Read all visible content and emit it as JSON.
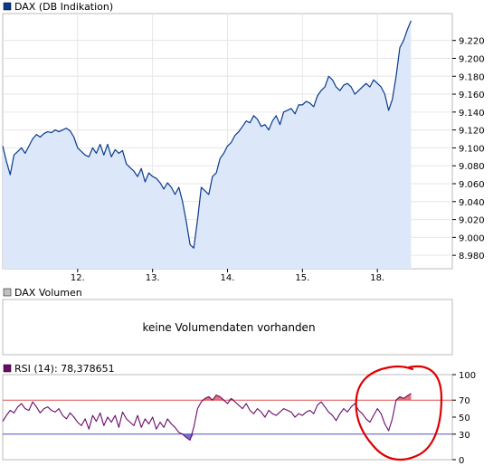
{
  "chart_data": [
    {
      "type": "area",
      "title": "DAX (DB Indikation)",
      "legend_color": "#0a3a8c",
      "series_color": "#0a3a8c",
      "fill_color": "#dce8fa",
      "grid": true,
      "ylim": [
        8965,
        9250
      ],
      "y_ticks": [
        8980,
        9000,
        9020,
        9040,
        9060,
        9080,
        9100,
        9120,
        9140,
        9160,
        9180,
        9200,
        9220
      ],
      "y_tick_labels": [
        "8.980",
        "9.000",
        "9.020",
        "9.040",
        "9.060",
        "9.080",
        "9.100",
        "9.120",
        "9.140",
        "9.160",
        "9.180",
        "9.200",
        "9.220"
      ],
      "x_tick_labels": [
        "12.",
        "13.",
        "14.",
        "15.",
        "18."
      ],
      "x_tick_positions": [
        1.0,
        2.0,
        3.0,
        4.0,
        5.0
      ],
      "xlim": [
        0,
        6.0
      ],
      "x": [
        0.0,
        0.05,
        0.1,
        0.15,
        0.2,
        0.25,
        0.3,
        0.35,
        0.4,
        0.45,
        0.5,
        0.55,
        0.6,
        0.65,
        0.7,
        0.75,
        0.8,
        0.85,
        0.9,
        0.95,
        1.0,
        1.05,
        1.1,
        1.15,
        1.2,
        1.25,
        1.3,
        1.35,
        1.4,
        1.45,
        1.5,
        1.55,
        1.6,
        1.65,
        1.7,
        1.75,
        1.8,
        1.85,
        1.9,
        1.95,
        2.0,
        2.05,
        2.1,
        2.15,
        2.2,
        2.25,
        2.3,
        2.35,
        2.4,
        2.45,
        2.5,
        2.55,
        2.6,
        2.65,
        2.7,
        2.75,
        2.8,
        2.85,
        2.9,
        2.95,
        3.0,
        3.05,
        3.1,
        3.15,
        3.2,
        3.25,
        3.3,
        3.35,
        3.4,
        3.45,
        3.5,
        3.55,
        3.6,
        3.65,
        3.7,
        3.75,
        3.8,
        3.85,
        3.9,
        3.95,
        4.0,
        4.05,
        4.1,
        4.15,
        4.2,
        4.25,
        4.3,
        4.35,
        4.4,
        4.45,
        4.5,
        4.55,
        4.6,
        4.65,
        4.7,
        4.75,
        4.8,
        4.85,
        4.9,
        4.95,
        5.0,
        5.05,
        5.1,
        5.15,
        5.2,
        5.25,
        5.3,
        5.35,
        5.4,
        5.45
      ],
      "values": [
        9102,
        9085,
        9070,
        9092,
        9096,
        9100,
        9094,
        9102,
        9110,
        9115,
        9112,
        9116,
        9118,
        9117,
        9120,
        9118,
        9120,
        9122,
        9119,
        9112,
        9100,
        9096,
        9092,
        9090,
        9100,
        9094,
        9104,
        9092,
        9104,
        9090,
        9098,
        9094,
        9097,
        9082,
        9078,
        9074,
        9068,
        9077,
        9062,
        9072,
        9068,
        9066,
        9061,
        9054,
        9061,
        9056,
        9048,
        9056,
        9040,
        9018,
        8992,
        8988,
        9020,
        9056,
        9052,
        9048,
        9068,
        9072,
        9088,
        9094,
        9102,
        9106,
        9114,
        9118,
        9124,
        9130,
        9128,
        9136,
        9132,
        9124,
        9126,
        9120,
        9130,
        9136,
        9126,
        9140,
        9142,
        9144,
        9138,
        9148,
        9148,
        9152,
        9150,
        9146,
        9158,
        9164,
        9168,
        9180,
        9176,
        9168,
        9164,
        9170,
        9172,
        9168,
        9160,
        9164,
        9168,
        9172,
        9168,
        9176,
        9172,
        9168,
        9160,
        9142,
        9154,
        9180,
        9212,
        9220,
        9232,
        9242
      ]
    },
    {
      "type": "bar",
      "title": "DAX Volumen",
      "legend_color": "#c0c0c0",
      "message": "keine Volumendaten vorhanden"
    },
    {
      "type": "line",
      "title": "RSI (14): 78,378651",
      "legend_color": "#6a0a6a",
      "series_color": "#6a0a6a",
      "ylim": [
        0,
        100
      ],
      "y_ticks": [
        100,
        70,
        50,
        30,
        0
      ],
      "y_tick_labels": [
        "100",
        "70",
        "50",
        "30",
        "0"
      ],
      "y_tick_colors": [
        "#000000",
        "#cc0000",
        "#000000",
        "#3333cc",
        "#000000"
      ],
      "upper_band": 70,
      "lower_band": 30,
      "upper_color": "#e05050",
      "lower_color": "#5050c0",
      "xlim": [
        0,
        6.0
      ],
      "x": [
        0.0,
        0.05,
        0.1,
        0.15,
        0.2,
        0.25,
        0.3,
        0.35,
        0.4,
        0.45,
        0.5,
        0.55,
        0.6,
        0.65,
        0.7,
        0.75,
        0.8,
        0.85,
        0.9,
        0.95,
        1.0,
        1.05,
        1.1,
        1.15,
        1.2,
        1.25,
        1.3,
        1.35,
        1.4,
        1.45,
        1.5,
        1.55,
        1.6,
        1.65,
        1.7,
        1.75,
        1.8,
        1.85,
        1.9,
        1.95,
        2.0,
        2.05,
        2.1,
        2.15,
        2.2,
        2.25,
        2.3,
        2.35,
        2.4,
        2.45,
        2.5,
        2.55,
        2.6,
        2.65,
        2.7,
        2.75,
        2.8,
        2.85,
        2.9,
        2.95,
        3.0,
        3.05,
        3.1,
        3.15,
        3.2,
        3.25,
        3.3,
        3.35,
        3.4,
        3.45,
        3.5,
        3.55,
        3.6,
        3.65,
        3.7,
        3.75,
        3.8,
        3.85,
        3.9,
        3.95,
        4.0,
        4.05,
        4.1,
        4.15,
        4.2,
        4.25,
        4.3,
        4.35,
        4.4,
        4.45,
        4.5,
        4.55,
        4.6,
        4.65,
        4.7,
        4.75,
        4.8,
        4.85,
        4.9,
        4.95,
        5.0,
        5.05,
        5.1,
        5.15,
        5.2,
        5.25,
        5.3,
        5.35,
        5.4,
        5.45
      ],
      "values": [
        45,
        52,
        58,
        55,
        62,
        66,
        60,
        58,
        68,
        62,
        55,
        60,
        62,
        58,
        56,
        60,
        52,
        48,
        55,
        50,
        44,
        40,
        48,
        36,
        52,
        45,
        55,
        40,
        50,
        44,
        52,
        38,
        56,
        48,
        44,
        40,
        52,
        38,
        48,
        42,
        50,
        36,
        44,
        38,
        48,
        42,
        38,
        32,
        30,
        26,
        23,
        38,
        60,
        68,
        72,
        74,
        70,
        76,
        74,
        70,
        66,
        72,
        68,
        64,
        60,
        66,
        58,
        54,
        60,
        56,
        50,
        58,
        54,
        52,
        56,
        60,
        58,
        56,
        50,
        54,
        52,
        56,
        58,
        54,
        64,
        68,
        62,
        56,
        52,
        46,
        54,
        60,
        56,
        62,
        66,
        58,
        54,
        48,
        44,
        52,
        60,
        54,
        42,
        34,
        48,
        70,
        74,
        72,
        75,
        78
      ]
    }
  ],
  "annotation": {
    "color": "#dd0000"
  }
}
